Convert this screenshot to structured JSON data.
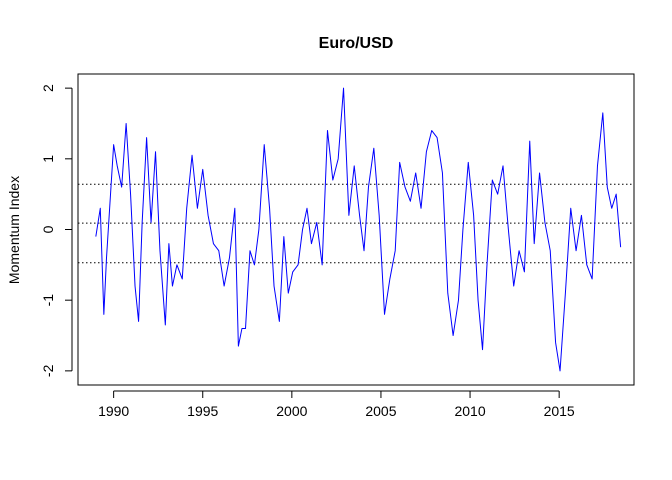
{
  "chart_data": {
    "type": "line",
    "title": "Euro/USD",
    "xlabel": "",
    "ylabel": "Momentum Index",
    "xlim": [
      1988.0,
      2019.2
    ],
    "ylim": [
      -2.2,
      2.2
    ],
    "x_ticks": [
      1990,
      1995,
      2000,
      2005,
      2010,
      2015
    ],
    "x_tick_labels": [
      "1990",
      "1995",
      "2000",
      "2005",
      "2010",
      "2015"
    ],
    "y_ticks": [
      -2,
      -1,
      0,
      1,
      2
    ],
    "y_tick_labels": [
      "-2",
      "-1",
      "0",
      "1",
      "2"
    ],
    "grid": false,
    "series": [
      {
        "color": "#0000ff",
        "x": [
          1989.0,
          1989.25,
          1989.45,
          1989.6,
          1989.75,
          1990.0,
          1990.2,
          1990.45,
          1990.7,
          1990.95,
          1991.2,
          1991.4,
          1991.6,
          1991.85,
          1992.1,
          1992.35,
          1992.6,
          1992.9,
          1993.1,
          1993.3,
          1993.55,
          1993.85,
          1994.1,
          1994.4,
          1994.7,
          1995.0,
          1995.3,
          1995.6,
          1995.9,
          1996.2,
          1996.5,
          1996.8,
          1997.0,
          1997.2,
          1997.4,
          1997.65,
          1997.9,
          1998.15,
          1998.45,
          1998.75,
          1999.0,
          1999.3,
          1999.55,
          1999.8,
          2000.05,
          2000.35,
          2000.6,
          2000.85,
          2001.1,
          2001.4,
          2001.7,
          2002.0,
          2002.3,
          2002.6,
          2002.9,
          2003.2,
          2003.5,
          2003.8,
          2004.05,
          2004.3,
          2004.6,
          2004.9,
          2005.2,
          2005.5,
          2005.8,
          2006.05,
          2006.35,
          2006.65,
          2006.95,
          2007.25,
          2007.55,
          2007.85,
          2008.15,
          2008.45,
          2008.75,
          2009.05,
          2009.35,
          2009.6,
          2009.9,
          2010.2,
          2010.45,
          2010.7,
          2010.95,
          2011.25,
          2011.55,
          2011.85,
          2012.15,
          2012.45,
          2012.75,
          2013.05,
          2013.35,
          2013.6,
          2013.9,
          2014.2,
          2014.5,
          2014.8,
          2015.05,
          2015.35,
          2015.65,
          2015.95,
          2016.25,
          2016.55,
          2016.85,
          2017.15,
          2017.45,
          2017.7,
          2017.95,
          2018.2,
          2018.45
        ],
        "y": [
          -0.1,
          0.3,
          -1.2,
          -0.4,
          0.2,
          1.2,
          0.9,
          0.6,
          1.5,
          0.5,
          -0.8,
          -1.3,
          0.1,
          1.3,
          0.1,
          1.1,
          -0.3,
          -1.35,
          -0.2,
          -0.8,
          -0.5,
          -0.7,
          0.3,
          1.05,
          0.3,
          0.85,
          0.2,
          -0.2,
          -0.3,
          -0.8,
          -0.4,
          0.3,
          -1.65,
          -1.4,
          -1.4,
          -0.3,
          -0.5,
          0.0,
          1.2,
          0.3,
          -0.8,
          -1.3,
          -0.1,
          -0.9,
          -0.6,
          -0.5,
          0.0,
          0.3,
          -0.2,
          0.1,
          -0.5,
          1.4,
          0.7,
          1.0,
          2.0,
          0.2,
          0.9,
          0.2,
          -0.3,
          0.6,
          1.15,
          0.2,
          -1.2,
          -0.7,
          -0.3,
          0.95,
          0.6,
          0.4,
          0.8,
          0.3,
          1.1,
          1.4,
          1.3,
          0.8,
          -0.9,
          -1.5,
          -1.0,
          0.0,
          0.95,
          0.2,
          -1.0,
          -1.7,
          -0.5,
          0.7,
          0.5,
          0.9,
          0.0,
          -0.8,
          -0.3,
          -0.6,
          1.25,
          -0.2,
          0.8,
          0.1,
          -0.3,
          -1.6,
          -2.0,
          -0.9,
          0.3,
          -0.3,
          0.2,
          -0.5,
          -0.7,
          0.9,
          1.65,
          0.6,
          0.3,
          0.5,
          -0.25
        ]
      }
    ],
    "reference_lines": [
      {
        "y": 0.64,
        "style": "dotted"
      },
      {
        "y": 0.09,
        "style": "dotted"
      },
      {
        "y": -0.47,
        "style": "dotted"
      }
    ]
  }
}
